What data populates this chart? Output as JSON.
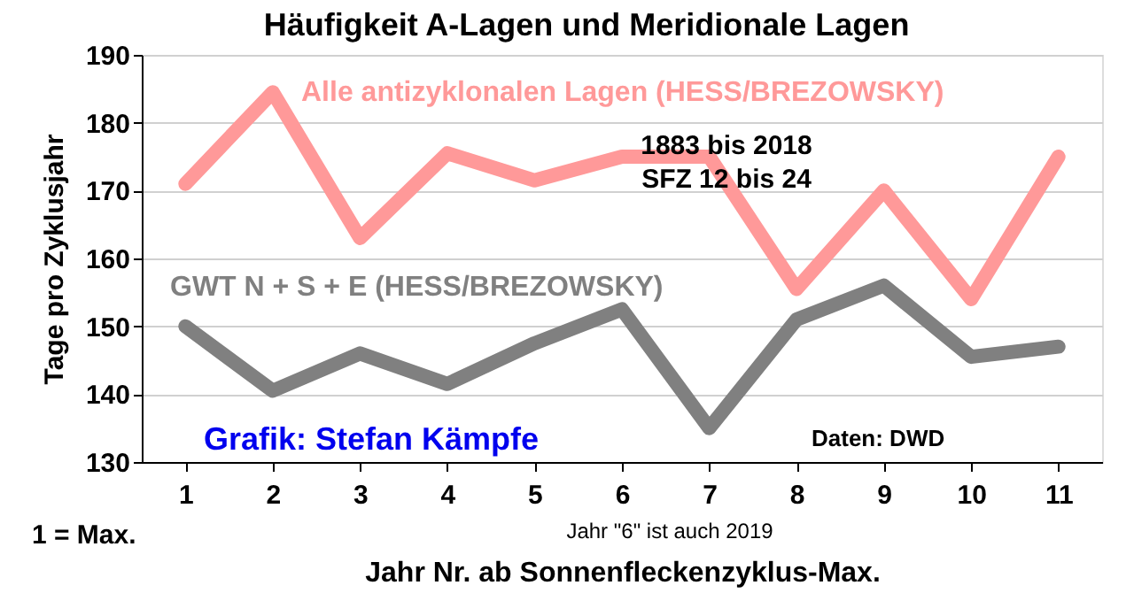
{
  "chart_data": {
    "type": "line",
    "title": "Häufigkeit A-Lagen und Meridionale Lagen",
    "xlabel": "Jahr Nr. ab Sonnenfleckenzyklus-Max.",
    "ylabel": "Tage pro Zyklusjahr",
    "categories": [
      "1",
      "2",
      "3",
      "4",
      "5",
      "6",
      "7",
      "8",
      "9",
      "10",
      "11"
    ],
    "series": [
      {
        "name": "Alle antizyklonalen Lagen (HESS/BREZOWSKY)",
        "color": "#ff9999",
        "values": [
          171,
          184.5,
          163,
          175.5,
          171.5,
          175,
          175,
          155.5,
          170,
          154,
          175
        ]
      },
      {
        "name": "GWT N + S + E (HESS/BREZOWSKY)",
        "color": "#808080",
        "values": [
          150,
          140.5,
          146,
          141.5,
          147.5,
          152.5,
          135,
          151,
          156,
          145.5,
          147
        ]
      }
    ],
    "ylim": [
      130,
      190
    ],
    "yticks": [
      130,
      140,
      150,
      160,
      170,
      180,
      190
    ],
    "grid": "y",
    "marker": "none",
    "line_style": "solid",
    "annotations": [
      "1883 bis 2018",
      "SFZ 12 bis 24",
      "Grafik: Stefan Kämpfe",
      "Daten: DWD",
      "1 = Max.",
      "Jahr \"6\"  ist auch 2019"
    ]
  }
}
